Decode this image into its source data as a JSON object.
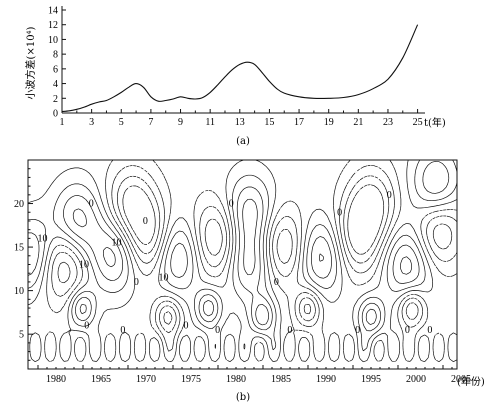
{
  "chart_data": [
    {
      "type": "line",
      "panel_label": "(a)",
      "ylabel": "小波方差(×10⁴)",
      "xlabel": "t(年)",
      "xlim": [
        1,
        25.5
      ],
      "ylim": [
        0,
        14
      ],
      "x_ticks": [
        1,
        3,
        5,
        7,
        9,
        11,
        13,
        15,
        17,
        19,
        21,
        23,
        25
      ],
      "y_ticks": [
        0,
        2,
        4,
        6,
        8,
        10,
        12,
        14
      ],
      "series": [
        {
          "x": [
            1,
            1.5,
            2,
            2.5,
            3,
            3.5,
            4,
            4.5,
            5,
            5.5,
            6,
            6.5,
            7,
            7.5,
            8,
            8.5,
            9,
            9.5,
            10,
            10.5,
            11,
            11.5,
            12,
            12.5,
            13,
            13.5,
            14,
            14.5,
            15,
            15.5,
            16,
            17,
            18,
            19,
            20,
            21,
            22,
            23,
            24,
            25
          ],
          "y": [
            0.2,
            0.3,
            0.5,
            0.8,
            1.2,
            1.5,
            1.7,
            2.2,
            2.8,
            3.5,
            4.0,
            3.5,
            2.2,
            1.6,
            1.7,
            1.9,
            2.2,
            2.0,
            1.9,
            2.1,
            2.8,
            3.8,
            4.9,
            5.9,
            6.6,
            6.9,
            6.6,
            5.5,
            4.3,
            3.3,
            2.7,
            2.2,
            2.0,
            2.0,
            2.1,
            2.5,
            3.3,
            4.6,
            7.5,
            12.0
          ]
        }
      ]
    },
    {
      "type": "contour",
      "panel_label": "(b)",
      "xlabel": "(年份)",
      "x_ticks": [
        "1980",
        "1965",
        "1970",
        "1975",
        "1980",
        "1985",
        "1990",
        "1995",
        "2000",
        "2005"
      ],
      "y_ticks": [
        5,
        10,
        15,
        20
      ],
      "ylim": [
        1,
        25
      ],
      "zero_labels": [
        "0",
        "0",
        "0",
        "0",
        "0",
        "0",
        "0",
        "0",
        "0",
        "0",
        "0",
        "0",
        "0",
        "0",
        "0"
      ],
      "contour_labels": [
        "10",
        "10",
        "10",
        "10"
      ],
      "centers": [
        {
          "x": 0.5,
          "y": 14,
          "s": 1
        },
        {
          "x": 3.7,
          "y": 13,
          "s": -1
        },
        {
          "x": 5.4,
          "y": 18,
          "s": 1
        },
        {
          "x": 9.5,
          "y": 14,
          "s": 1
        },
        {
          "x": 13.4,
          "y": 16,
          "s": -1
        },
        {
          "x": 11.5,
          "y": 20,
          "s": -1
        },
        {
          "x": 16.5,
          "y": 14,
          "s": 1
        },
        {
          "x": 20.8,
          "y": 16,
          "s": -1
        },
        {
          "x": 24.6,
          "y": 13,
          "s": 1
        },
        {
          "x": 24.5,
          "y": 19,
          "s": 1
        },
        {
          "x": 28.2,
          "y": 15,
          "s": -1
        },
        {
          "x": 32.5,
          "y": 14,
          "s": 1
        },
        {
          "x": 36.5,
          "y": 16,
          "s": -1
        },
        {
          "x": 38.0,
          "y": 20,
          "s": -1
        },
        {
          "x": 42.0,
          "y": 13,
          "s": 1
        },
        {
          "x": 45.5,
          "y": 17,
          "s": -1
        },
        {
          "x": 45.2,
          "y": 22,
          "s": 1
        },
        {
          "x": 6.0,
          "y": 8,
          "s": 1
        },
        {
          "x": 15.5,
          "y": 7,
          "s": -1
        },
        {
          "x": 20.0,
          "y": 8,
          "s": 1
        },
        {
          "x": 26.0,
          "y": 7,
          "s": 1
        },
        {
          "x": 31.0,
          "y": 8,
          "s": -1
        },
        {
          "x": 38.0,
          "y": 7,
          "s": 1
        },
        {
          "x": 42.5,
          "y": 8,
          "s": -1
        }
      ]
    }
  ]
}
